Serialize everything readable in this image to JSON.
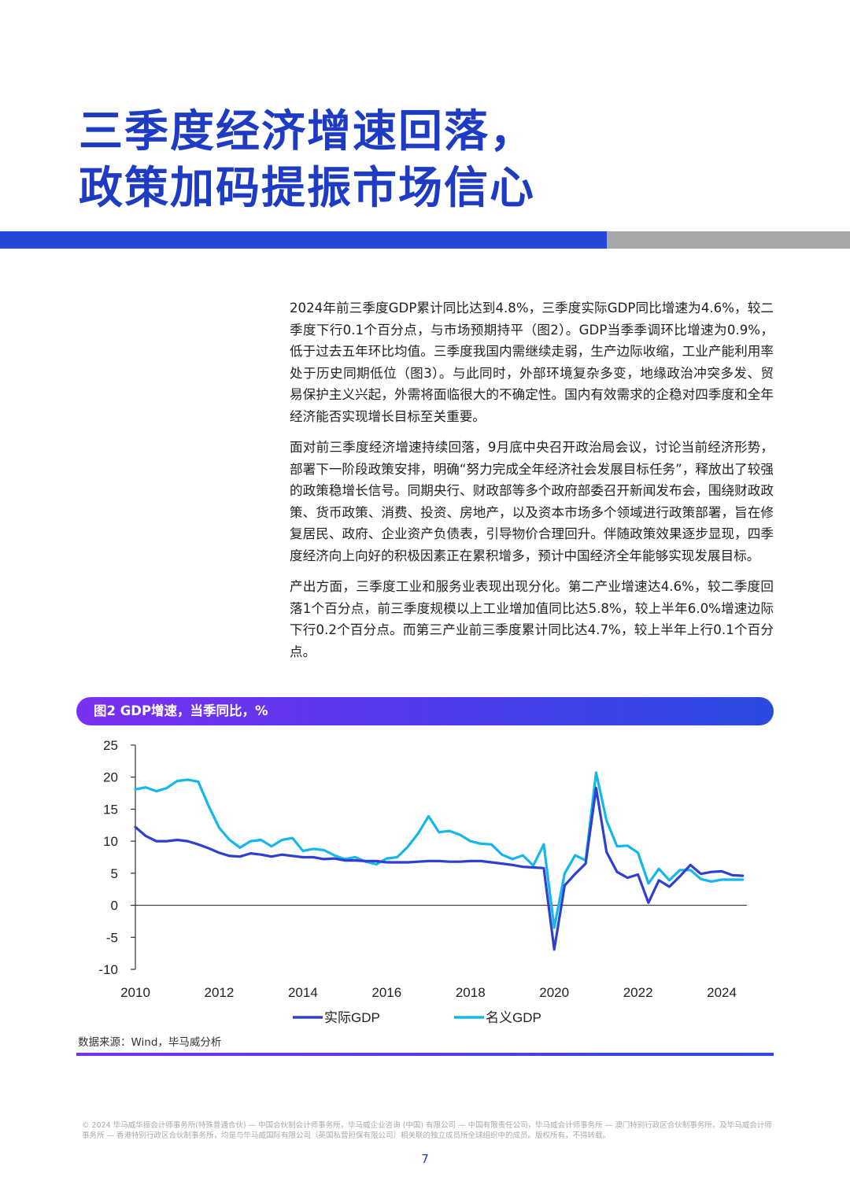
{
  "title": {
    "line1": "三季度经济增速回落，",
    "line2": "政策加码提振市场信心"
  },
  "colors": {
    "brand_blue": "#1e3bc4",
    "band_blue": "#2548d6",
    "band_gray": "#a7a7a7",
    "real_gdp": "#2f3fd1",
    "nominal_gdp": "#14b7ea"
  },
  "paragraphs": [
    "2024年前三季度GDP累计同比达到4.8%，三季度实际GDP同比增速为4.6%，较二季度下行0.1个百分点，与市场预期持平（图2）。GDP当季季调环比增速为0.9%，低于过去五年环比均值。三季度我国内需继续走弱，生产边际收缩，工业产能利用率处于历史同期低位（图3）。与此同时，外部环境复杂多变，地缘政治冲突多发、贸易保护主义兴起，外需将面临很大的不确定性。国内有效需求的企稳对四季度和全年经济能否实现增长目标至关重要。",
    "面对前三季度经济增速持续回落，9月底中央召开政治局会议，讨论当前经济形势，部署下一阶段政策安排，明确“努力完成全年经济社会发展目标任务”，释放出了较强的政策稳增长信号。同期央行、财政部等多个政府部委召开新闻发布会，围绕财政政策、货币政策、消费、投资、房地产，以及资本市场多个领域进行政策部署，旨在修复居民、政府、企业资产负债表，引导物价合理回升。伴随政策效果逐步显现，四季度经济向上向好的积极因素正在累积增多，预计中国经济全年能够实现发展目标。",
    "产出方面，三季度工业和服务业表现出现分化。第二产业增速达4.6%，较二季度回落1个百分点，前三季度规模以上工业增加值同比达5.8%，较上半年6.0%增速边际下行0.2个百分点。而第三产业前三季度累计同比达4.7%，较上半年上行0.1个百分点。"
  ],
  "figure_title": "图2 GDP增速，当季同比，%",
  "source": "数据来源：Wind，毕马威分析",
  "footer": "© 2024 毕马威华振会计师事务所(特殊普通合伙) — 中国合伙制会计师事务所，毕马威企业咨询 (中国) 有限公司 — 中国有限责任公司，毕马威会计师事务所 — 澳门特别行政区合伙制事务所，及毕马威会计师事务所 — 香港特别行政区合伙制事务所，均是与毕马威国际有限公司（英国私营担保有限公司）相关联的独立成员所全球组织中的成员。版权所有，不得转载。",
  "page_number": "7",
  "chart_data": {
    "type": "line",
    "title": "图2 GDP增速，当季同比，%",
    "xlim": [
      2010,
      2024.6
    ],
    "ylim": [
      -10,
      25
    ],
    "y_ticks": [
      -10,
      -5,
      0,
      5,
      10,
      15,
      20,
      25
    ],
    "x_ticks": [
      2010,
      2012,
      2014,
      2016,
      2018,
      2020,
      2022,
      2024
    ],
    "legend": "bottom-center",
    "grid": false,
    "series": [
      {
        "name": "实际GDP",
        "color": "#2f3fd1",
        "x": [
          2010.0,
          2010.25,
          2010.5,
          2010.75,
          2011.0,
          2011.25,
          2011.5,
          2011.75,
          2012.0,
          2012.25,
          2012.5,
          2012.75,
          2013.0,
          2013.25,
          2013.5,
          2013.75,
          2014.0,
          2014.25,
          2014.5,
          2014.75,
          2015.0,
          2015.25,
          2015.5,
          2015.75,
          2016.0,
          2016.25,
          2016.5,
          2016.75,
          2017.0,
          2017.25,
          2017.5,
          2017.75,
          2018.0,
          2018.25,
          2018.5,
          2018.75,
          2019.0,
          2019.25,
          2019.5,
          2019.75,
          2020.0,
          2020.25,
          2020.5,
          2020.75,
          2021.0,
          2021.25,
          2021.5,
          2021.75,
          2022.0,
          2022.25,
          2022.5,
          2022.75,
          2023.0,
          2023.25,
          2023.5,
          2023.75,
          2024.0,
          2024.25,
          2024.5
        ],
        "values": [
          12.2,
          10.8,
          10.0,
          10.0,
          10.2,
          10.0,
          9.5,
          8.9,
          8.2,
          7.7,
          7.6,
          8.1,
          7.9,
          7.6,
          7.9,
          7.7,
          7.5,
          7.5,
          7.2,
          7.3,
          7.0,
          7.0,
          6.9,
          6.9,
          6.7,
          6.7,
          6.7,
          6.8,
          6.9,
          6.9,
          6.8,
          6.8,
          6.9,
          6.9,
          6.7,
          6.5,
          6.3,
          6.0,
          5.9,
          5.8,
          -6.9,
          3.1,
          4.9,
          6.5,
          18.3,
          8.3,
          5.2,
          4.3,
          4.8,
          0.4,
          3.9,
          2.9,
          4.5,
          6.3,
          4.9,
          5.2,
          5.3,
          4.7,
          4.6
        ]
      },
      {
        "name": "名义GDP",
        "color": "#14b7ea",
        "x": [
          2010.0,
          2010.25,
          2010.5,
          2010.75,
          2011.0,
          2011.25,
          2011.5,
          2011.75,
          2012.0,
          2012.25,
          2012.5,
          2012.75,
          2013.0,
          2013.25,
          2013.5,
          2013.75,
          2014.0,
          2014.25,
          2014.5,
          2014.75,
          2015.0,
          2015.25,
          2015.5,
          2015.75,
          2016.0,
          2016.25,
          2016.5,
          2016.75,
          2017.0,
          2017.25,
          2017.5,
          2017.75,
          2018.0,
          2018.25,
          2018.5,
          2018.75,
          2019.0,
          2019.25,
          2019.5,
          2019.75,
          2020.0,
          2020.25,
          2020.5,
          2020.75,
          2021.0,
          2021.25,
          2021.5,
          2021.75,
          2022.0,
          2022.25,
          2022.5,
          2022.75,
          2023.0,
          2023.25,
          2023.5,
          2023.75,
          2024.0,
          2024.25,
          2024.5
        ],
        "values": [
          18.1,
          18.4,
          17.8,
          18.3,
          19.4,
          19.6,
          19.3,
          15.5,
          12.1,
          10.2,
          9.0,
          10.0,
          10.2,
          9.2,
          10.2,
          10.5,
          8.5,
          8.8,
          8.6,
          7.8,
          7.2,
          7.5,
          6.8,
          6.4,
          7.3,
          7.5,
          9.1,
          11.2,
          13.9,
          11.4,
          11.6,
          11.0,
          10.0,
          9.6,
          9.5,
          7.9,
          7.2,
          7.8,
          6.2,
          9.5,
          -3.5,
          5.0,
          7.8,
          7.0,
          20.7,
          13.2,
          9.2,
          9.3,
          8.2,
          3.4,
          5.7,
          3.9,
          5.5,
          5.5,
          4.1,
          3.7,
          4.0,
          4.0,
          4.0
        ]
      }
    ]
  }
}
